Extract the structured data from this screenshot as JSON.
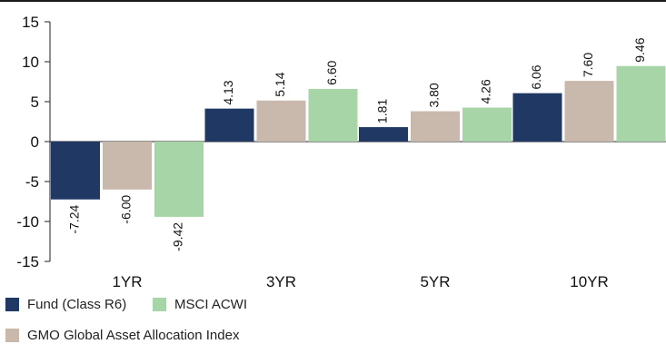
{
  "chart_data": {
    "type": "bar",
    "categories": [
      "1YR",
      "3YR",
      "5YR",
      "10YR"
    ],
    "series": [
      {
        "name": "Fund (Class R6)",
        "color": "#1f3864",
        "values": [
          -7.24,
          4.13,
          1.81,
          6.06
        ]
      },
      {
        "name": "GMO Global Asset Allocation Index",
        "color": "#c9b9ad",
        "values": [
          -6.0,
          5.14,
          3.8,
          7.6
        ]
      },
      {
        "name": "MSCI ACWI",
        "color": "#a8d5a8",
        "values": [
          -9.42,
          6.6,
          4.26,
          9.46
        ]
      }
    ],
    "data_labels": [
      [
        "-7.24",
        "4.13",
        "1.81",
        "6.06"
      ],
      [
        "-6.00",
        "5.14",
        "3.80",
        "7.60"
      ],
      [
        "-9.42",
        "6.60",
        "4.26",
        "9.46"
      ]
    ],
    "yticks": [
      "15",
      "10",
      "5",
      "0",
      "-5",
      "-10",
      "-15"
    ],
    "ytick_values": [
      15,
      10,
      5,
      0,
      -5,
      -10,
      -15
    ],
    "ylim": [
      -15,
      15
    ],
    "grid": false,
    "legend_position": "bottom"
  }
}
